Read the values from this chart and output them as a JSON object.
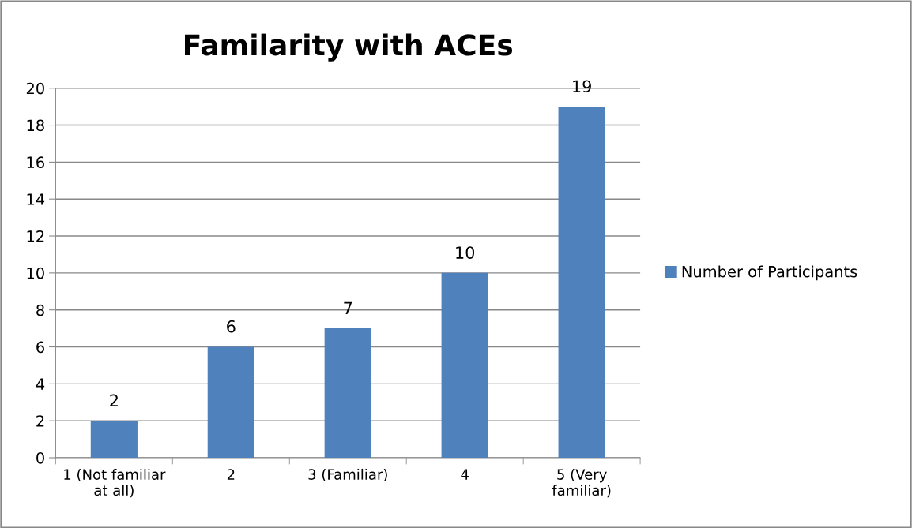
{
  "chart_data": {
    "type": "bar",
    "title": "Familarity with ACEs",
    "categories": [
      "1 (Not familiar\nat all)",
      "2",
      "3 (Familiar)",
      "4",
      "5 (Very\nfamiliar)"
    ],
    "series": [
      {
        "name": "Number of Participants",
        "color": "#4f81bd",
        "values": [
          2,
          6,
          7,
          10,
          19
        ]
      }
    ],
    "ylim": [
      0,
      20
    ],
    "yticks": [
      0,
      2,
      4,
      6,
      8,
      10,
      12,
      14,
      16,
      18,
      20
    ],
    "grid": "y",
    "legend": "right",
    "data_labels": true
  }
}
